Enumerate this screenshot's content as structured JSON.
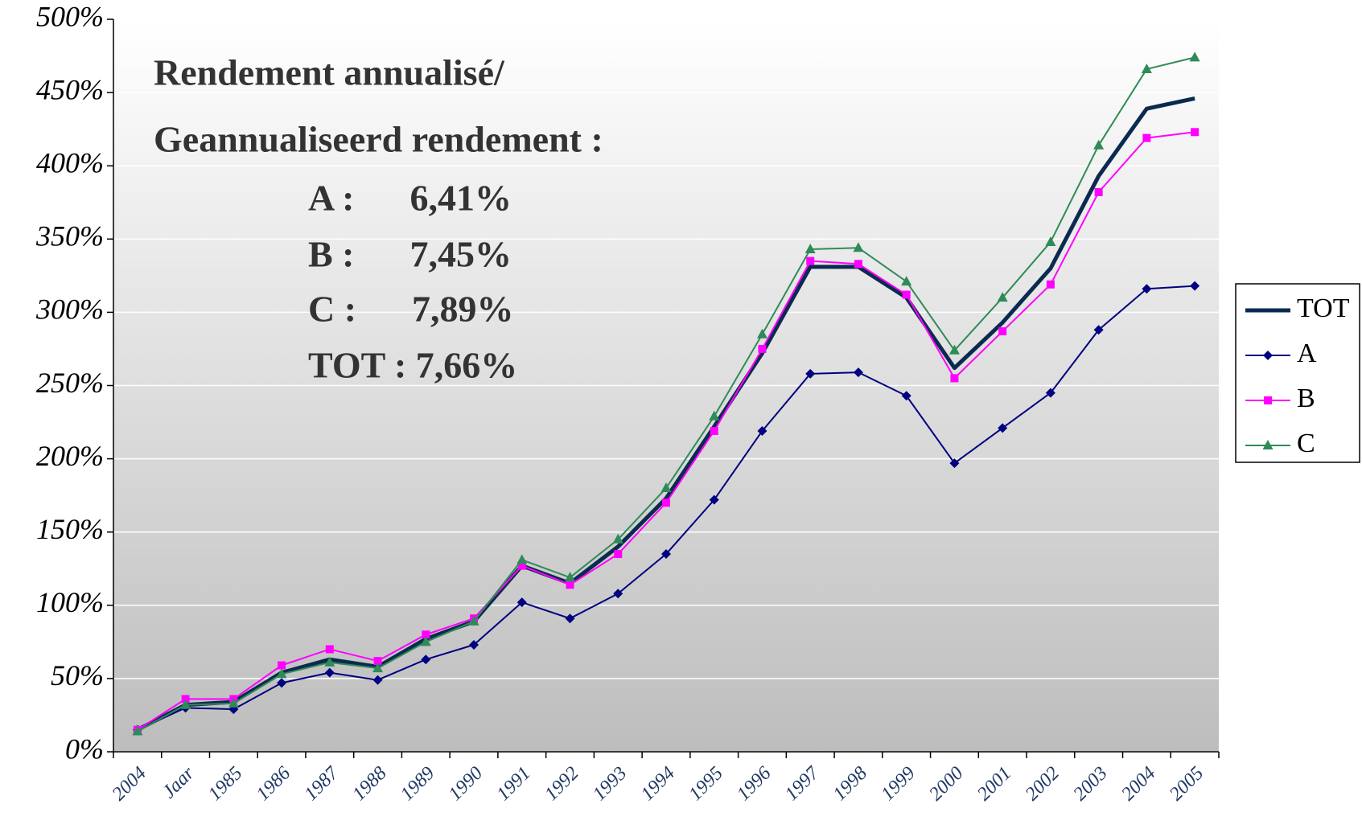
{
  "chart_data": {
    "type": "line",
    "annotations": [
      "Rendement annualisé/",
      "Geannualiseerd rendement :",
      "A :      6,41%",
      "B :      7,45%",
      "C :      7,89%",
      "TOT : 7,66%"
    ],
    "categories": [
      "2004",
      "Jaar",
      "1985",
      "1986",
      "1987",
      "1988",
      "1989",
      "1990",
      "1991",
      "1992",
      "1993",
      "1994",
      "1995",
      "1996",
      "1997",
      "1998",
      "1999",
      "2000",
      "2001",
      "2002",
      "2003",
      "2004",
      "2005"
    ],
    "series": [
      {
        "name": "TOT",
        "color": "#0b2a50",
        "values": [
          15,
          32,
          34,
          54,
          63,
          58,
          77,
          89,
          127,
          115,
          140,
          173,
          222,
          272,
          331,
          331,
          310,
          262,
          293,
          330,
          393,
          439,
          446
        ]
      },
      {
        "name": "A",
        "color": "#000080",
        "values": [
          15,
          30,
          29,
          47,
          54,
          49,
          63,
          73,
          102,
          91,
          108,
          135,
          172,
          219,
          258,
          259,
          243,
          197,
          221,
          245,
          288,
          316,
          318
        ]
      },
      {
        "name": "B",
        "color": "#ff00ff",
        "values": [
          15,
          36,
          36,
          59,
          70,
          62,
          80,
          91,
          127,
          114,
          135,
          170,
          219,
          275,
          335,
          333,
          312,
          255,
          287,
          319,
          382,
          419,
          423
        ]
      },
      {
        "name": "C",
        "color": "#2e8b57",
        "values": [
          14,
          32,
          33,
          53,
          61,
          57,
          75,
          89,
          131,
          119,
          145,
          180,
          229,
          285,
          343,
          344,
          321,
          274,
          310,
          348,
          414,
          466,
          474
        ]
      }
    ],
    "ylim": [
      0,
      500
    ],
    "yticks": [
      {
        "value": 0,
        "label": "0%"
      },
      {
        "value": 50,
        "label": "50%"
      },
      {
        "value": 100,
        "label": "100%"
      },
      {
        "value": 150,
        "label": "150%"
      },
      {
        "value": 200,
        "label": "200%"
      },
      {
        "value": 250,
        "label": "250%"
      },
      {
        "value": 300,
        "label": "300%"
      },
      {
        "value": 350,
        "label": "350%"
      },
      {
        "value": 400,
        "label": "400%"
      },
      {
        "value": 450,
        "label": "450%"
      },
      {
        "value": 500,
        "label": "500%"
      }
    ],
    "grid": true,
    "legend": "right"
  }
}
